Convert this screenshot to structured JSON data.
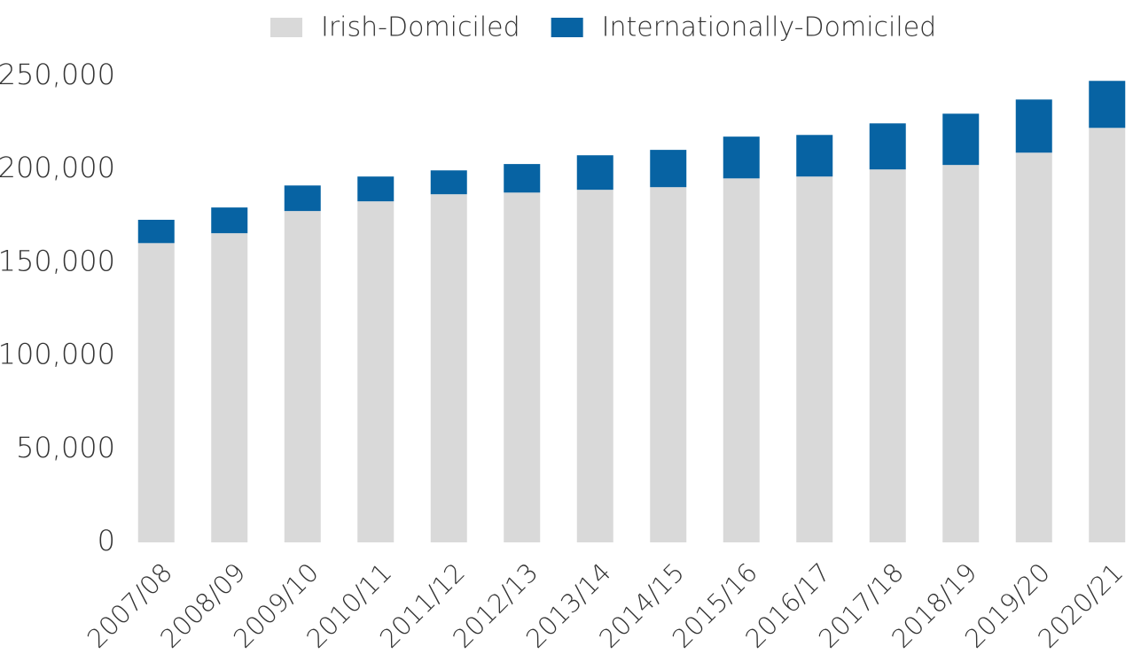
{
  "chart_data": {
    "type": "stacked_bar",
    "categories": [
      "2007/08",
      "2008/09",
      "2009/10",
      "2010/11",
      "2011/12",
      "2012/13",
      "2013/14",
      "2014/15",
      "2015/16",
      "2016/17",
      "2017/18",
      "2018/19",
      "2019/20",
      "2020/21"
    ],
    "series": [
      {
        "name": "Irish-Domiciled",
        "color": "#d9d9d9",
        "values": [
          160500,
          165800,
          177700,
          182900,
          186700,
          187600,
          189100,
          190500,
          195200,
          196200,
          200000,
          202400,
          209000,
          222300
        ]
      },
      {
        "name": "Internationally-Domiciled",
        "color": "#0763a3",
        "values": [
          12500,
          13800,
          13700,
          13300,
          12800,
          15300,
          18500,
          20000,
          22400,
          22300,
          24700,
          27500,
          28500,
          25200
        ]
      }
    ],
    "ylim": [
      0,
      250000
    ],
    "yticks": [
      0,
      {
        "value": 50000,
        "label": "50,000"
      },
      {
        "value": 100000,
        "label": "100,000"
      },
      {
        "value": 150000,
        "label": "150,000"
      },
      {
        "value": 200000,
        "label": "200,000"
      },
      {
        "value": 250000,
        "label": "250,000"
      }
    ],
    "legend": "top"
  }
}
